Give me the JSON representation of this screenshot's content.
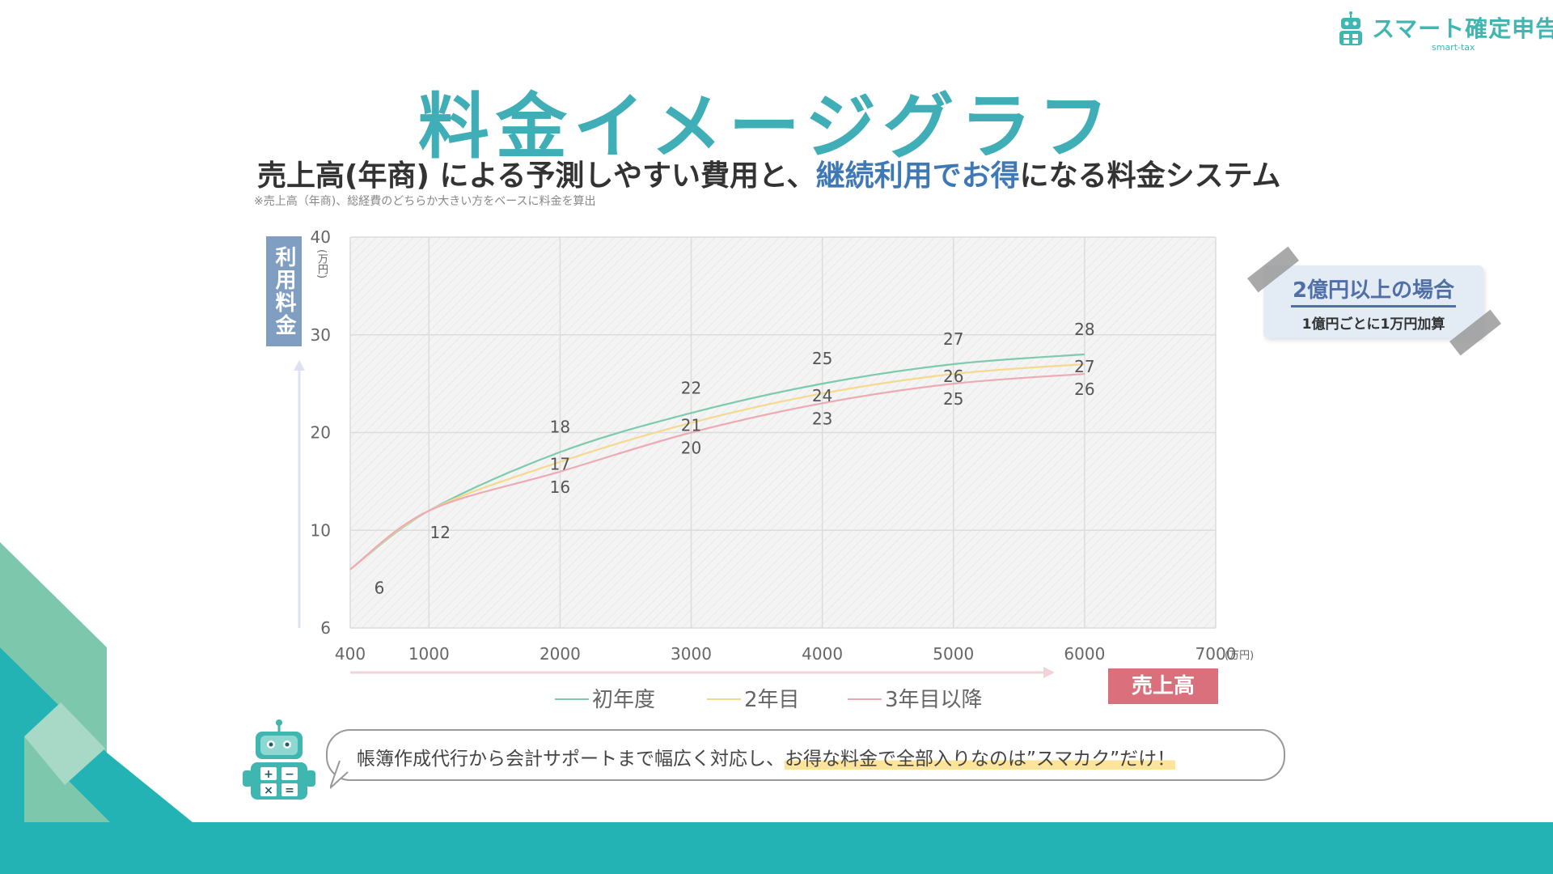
{
  "logo": {
    "text": "スマート確定申告",
    "sub": "smart-tax"
  },
  "title": "料金イメージグラフ",
  "subtitle": {
    "part1": "売上高(年商) による予測しやすい費用と、",
    "highlight": "継続利用でお得",
    "part2": "になる料金システム"
  },
  "note": "※売上高（年商)、総経費のどちらか大きい方をベースに料金を算出",
  "info_card": {
    "title": "2億円以上の場合",
    "subtitle": "1億円ごとに1万円加算"
  },
  "bubble": {
    "text": "帳簿作成代行から会計サポートまで幅広く対応し、",
    "highlight": "お得な料金で全部入りなのは”スマカク”だけ！"
  },
  "colors": {
    "accent": "#3faeb6",
    "bottom_bar": "#24b3b4",
    "series_first": "#7ccbac",
    "series_second": "#f5d98c",
    "series_third": "#eeaab4",
    "x_label_bg": "#d9707c",
    "y_label_bg": "#7f9ec2"
  },
  "chart_data": {
    "type": "line",
    "ylabel": "利用料金",
    "yunit": "(万円)",
    "xlabel": "売上高",
    "xunit": "(万円)",
    "xlim": [
      400,
      7000
    ],
    "x_ticks": [
      400,
      1000,
      2000,
      3000,
      4000,
      5000,
      6000,
      7000
    ],
    "y_ticks": [
      6,
      10,
      20,
      30,
      40
    ],
    "ylim": [
      0,
      40
    ],
    "grid": true,
    "legend_position": "bottom",
    "series": [
      {
        "name": "初年度",
        "x": [
          400,
          1000,
          2000,
          3000,
          4000,
          5000,
          6000
        ],
        "y": [
          6,
          12,
          18,
          22,
          25,
          27,
          28
        ],
        "labels": [
          "6",
          "12",
          "18",
          "22",
          "25",
          "27",
          "28"
        ]
      },
      {
        "name": "2年目",
        "x": [
          400,
          1000,
          2000,
          3000,
          4000,
          5000,
          6000
        ],
        "y": [
          6,
          12,
          17,
          21,
          24,
          26,
          27
        ],
        "labels": [
          "",
          "",
          "17",
          "21",
          "24",
          "26",
          "27"
        ]
      },
      {
        "name": "3年目以降",
        "x": [
          400,
          1000,
          2000,
          3000,
          4000,
          5000,
          6000
        ],
        "y": [
          6,
          12,
          16,
          20,
          23,
          25,
          26
        ],
        "labels": [
          "",
          "",
          "16",
          "20",
          "23",
          "25",
          "26"
        ]
      }
    ]
  }
}
